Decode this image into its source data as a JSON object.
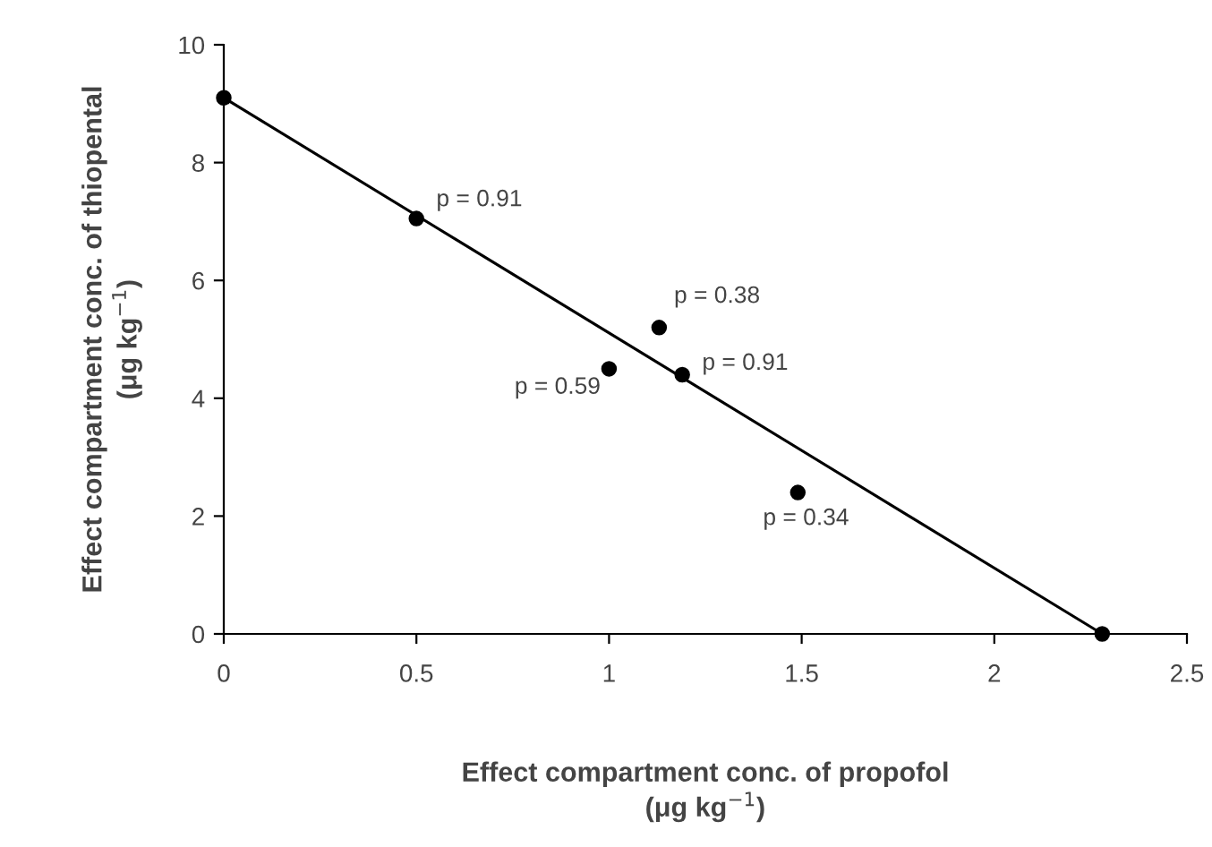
{
  "chart_data": {
    "type": "scatter",
    "xlabel": "Effect compartment conc. of propofol\n(μg kg$^{−1}$)",
    "ylabel": "Effect compartment conc. of thiopental\n(μg kg$^{−1}$)",
    "series": [
      {
        "color": "#000000",
        "marker": "circle",
        "x": [
          0,
          0.5,
          1.0,
          1.13,
          1.19,
          1.49,
          2.28
        ],
        "values": [
          9.1,
          7.05,
          4.5,
          5.2,
          4.4,
          2.4,
          0
        ]
      },
      {
        "type": "line",
        "color": "#000000",
        "marker": "none",
        "line_style": "solid",
        "x": [
          0,
          2.28
        ],
        "values": [
          9.1,
          0
        ]
      }
    ],
    "annotations": [
      {
        "text": "p = 0.91",
        "x": 0.5,
        "y": 7.05
      },
      {
        "text": "p = 0.59",
        "x": 1.0,
        "y": 4.5
      },
      {
        "text": "p = 0.38",
        "x": 1.13,
        "y": 5.2
      },
      {
        "text": "p = 0.91",
        "x": 1.19,
        "y": 4.4
      },
      {
        "text": "p = 0.34",
        "x": 1.49,
        "y": 2.4
      }
    ],
    "xlim": [
      0,
      2.5
    ],
    "xticks": [
      0,
      0.5,
      1,
      1.5,
      2,
      2.5
    ],
    "ylim": [
      0,
      10
    ],
    "yticks": [
      0,
      2,
      4,
      6,
      8,
      10
    ],
    "grid": false,
    "legend": false
  }
}
